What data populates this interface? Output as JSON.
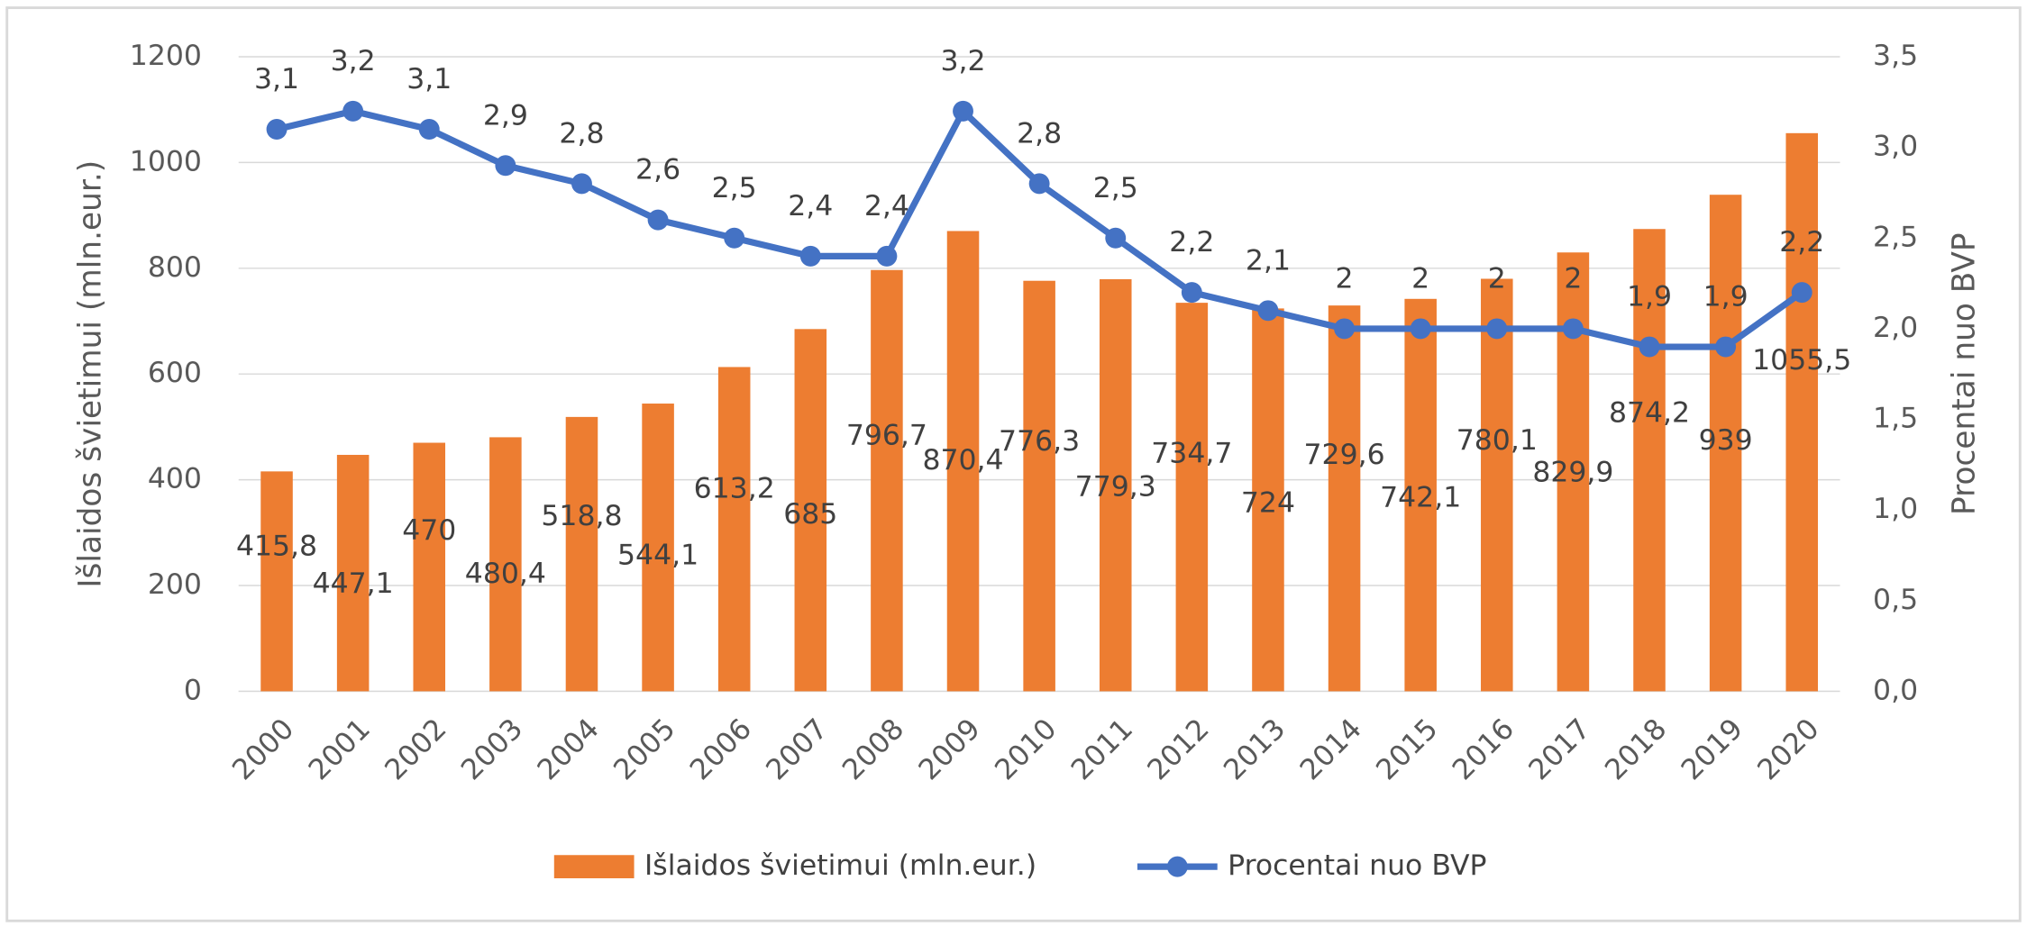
{
  "chart_data": {
    "type": "bar-line",
    "categories": [
      "2000",
      "2001",
      "2002",
      "2003",
      "2004",
      "2005",
      "2006",
      "2007",
      "2008",
      "2009",
      "2010",
      "2011",
      "2012",
      "2013",
      "2014",
      "2015",
      "2016",
      "2017",
      "2018",
      "2019",
      "2020"
    ],
    "series": [
      {
        "name": "Išlaidos švietimui (mln.eur.)",
        "type": "bar",
        "color": "#ed7d31",
        "values": [
          415.8,
          447.1,
          470,
          480.4,
          518.8,
          544.1,
          613.2,
          685,
          796.7,
          870.4,
          776.3,
          779.3,
          734.7,
          724,
          729.6,
          742.1,
          780.1,
          829.9,
          874.2,
          939,
          1055.5
        ],
        "value_labels": [
          "415,8",
          "447,1",
          "470",
          "480,4",
          "518,8",
          "544,1",
          "613,2",
          "685",
          "796,7",
          "870,4",
          "776,3",
          "779,3",
          "734,7",
          "724",
          "729,6",
          "742,1",
          "780,1",
          "829,9",
          "874,2",
          "939",
          "1055,5"
        ]
      },
      {
        "name": "Procentai nuo BVP",
        "type": "line",
        "axis": "y2",
        "color": "#4472c4",
        "values": [
          3.1,
          3.2,
          3.1,
          2.9,
          2.8,
          2.6,
          2.5,
          2.4,
          2.4,
          3.2,
          2.8,
          2.5,
          2.2,
          2.1,
          2,
          2,
          2,
          2,
          1.9,
          1.9,
          2.2
        ],
        "value_labels": [
          "3,1",
          "3,2",
          "3,1",
          "2,9",
          "2,8",
          "2,6",
          "2,5",
          "2,4",
          "2,4",
          "3,2",
          "2,8",
          "2,5",
          "2,2",
          "2,1",
          "2",
          "2",
          "2",
          "2",
          "1,9",
          "1,9",
          "2,2"
        ]
      }
    ],
    "ylabel": "Išlaidos švietimui (mln.eur.)",
    "y2label": "Procentai nuo BVP",
    "ylim": [
      0,
      1200
    ],
    "yticks": [
      0,
      200,
      400,
      600,
      800,
      1000,
      1200
    ],
    "y2lim": [
      0,
      3.5
    ],
    "y2ticks": [
      {
        "value": 0,
        "label": "0,0"
      },
      {
        "value": 0.5,
        "label": "0,5"
      },
      {
        "value": 1,
        "label": "1,0"
      },
      {
        "value": 1.5,
        "label": "1,5"
      },
      {
        "value": 2,
        "label": "2,0"
      },
      {
        "value": 2.5,
        "label": "2,5"
      },
      {
        "value": 3,
        "label": "3,0"
      },
      {
        "value": 3.5,
        "label": "3,5"
      }
    ],
    "grid": true,
    "legend": "bottom"
  }
}
